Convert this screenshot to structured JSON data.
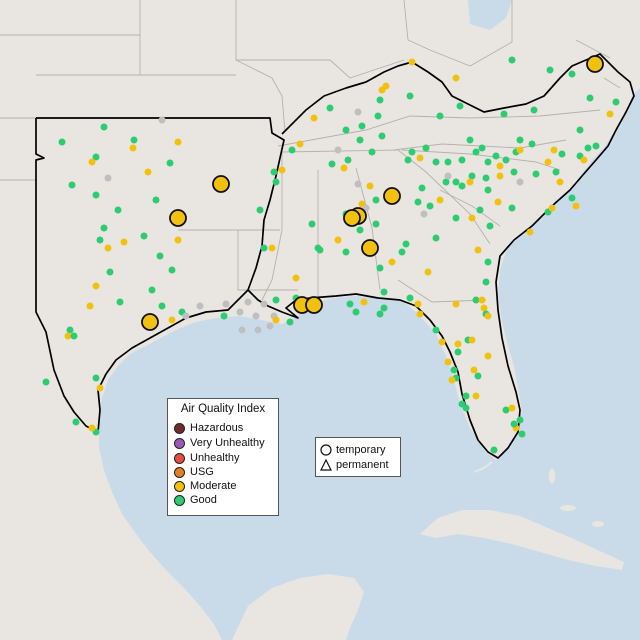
{
  "map": {
    "colors": {
      "ocean": "#c9dbe9",
      "land": "#e9e6e1",
      "state_border": "#b5b0aa",
      "region_outline": "#000000",
      "Good": "#2ecc71",
      "Moderate": "#f2c10f",
      "USG": "#e67e22",
      "Unhealthy": "#e74c3c",
      "Very Unhealthy": "#9b59b6",
      "Hazardous": "#6e2c2c",
      "Unknown": "#bfbfbf"
    },
    "aqi_legend": {
      "title": "Air Quality Index",
      "items": [
        {
          "label": "Hazardous",
          "color": "#6e2c2c"
        },
        {
          "label": "Very Unhealthy",
          "color": "#9b59b6"
        },
        {
          "label": "Unhealthy",
          "color": "#e74c3c"
        },
        {
          "label": "USG",
          "color": "#e67e22"
        },
        {
          "label": "Moderate",
          "color": "#f2c10f"
        },
        {
          "label": "Good",
          "color": "#2ecc71"
        }
      ]
    },
    "type_legend": {
      "items": [
        {
          "label": "temporary",
          "symbol": "circle-icon"
        },
        {
          "label": "permanent",
          "symbol": "triangle-icon"
        }
      ]
    }
  }
}
